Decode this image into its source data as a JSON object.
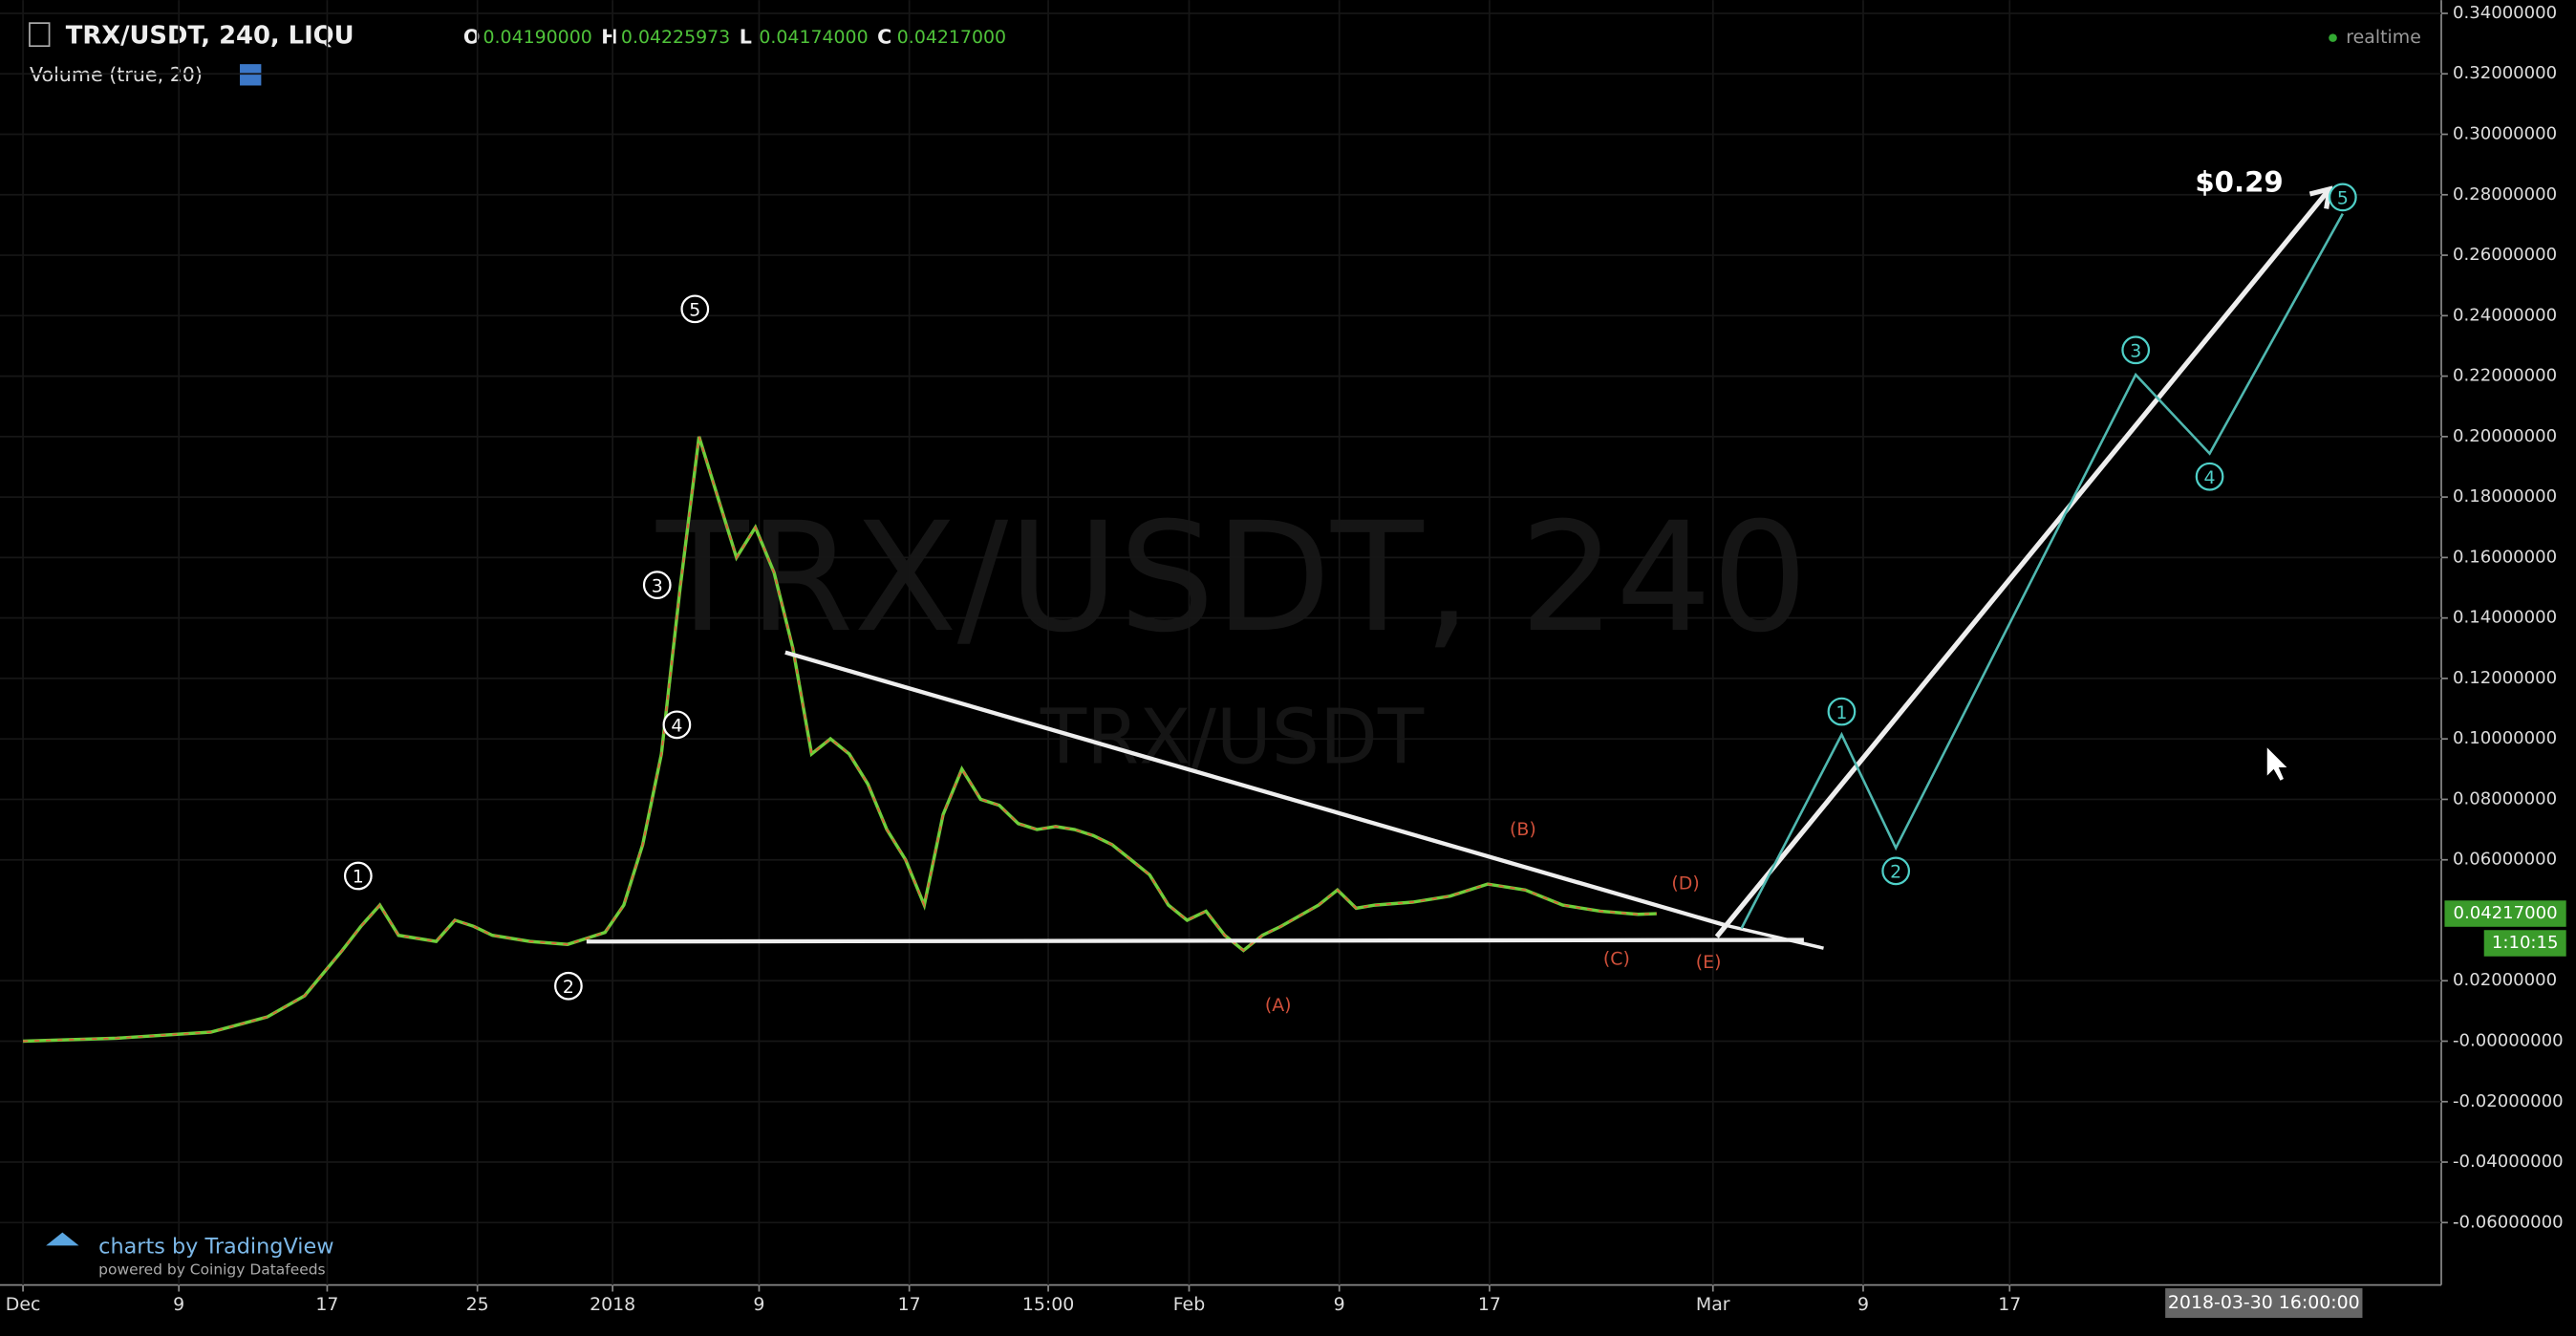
{
  "chart_data": {
    "type": "line",
    "title": "TRX/USDT, 240, LIQU",
    "ohlc": {
      "O_label": "O",
      "O": "0.04190000",
      "H_label": "H",
      "H": "0.04225973",
      "L_label": "L",
      "L": "0.04174000",
      "C_label": "C",
      "C": "0.04217000"
    },
    "volume_label": "Volume (true, 20)",
    "realtime": "realtime",
    "watermark": "TRX/USDT, 240",
    "watermark_sub": "TRX/USDT",
    "branding": "charts by TradingView",
    "branding_sub": "powered by Coinigy Datafeeds",
    "countdown": "1:10:15",
    "cursor_time": "2018-03-30 16:00:00",
    "series": [
      {
        "name": "TRX/USDT",
        "color": "#6fcf3a",
        "x": [
          0,
          5,
          10,
          13,
          15,
          17,
          18,
          19,
          20,
          22,
          23,
          24,
          25,
          27,
          29,
          30,
          31,
          32,
          33,
          34,
          35,
          36,
          37,
          38,
          39,
          40,
          41,
          42,
          43,
          44,
          45,
          46,
          47,
          48,
          49,
          50,
          51,
          52,
          53,
          54,
          55,
          56,
          57,
          58,
          59,
          60,
          61,
          62,
          63,
          64,
          65,
          66,
          67,
          69,
          70,
          71,
          72,
          74,
          76,
          78,
          80,
          82,
          84,
          86,
          87
        ],
        "values": [
          0,
          0.001,
          0.003,
          0.008,
          0.015,
          0.03,
          0.038,
          0.045,
          0.035,
          0.033,
          0.04,
          0.038,
          0.035,
          0.033,
          0.032,
          0.034,
          0.036,
          0.045,
          0.065,
          0.095,
          0.15,
          0.2,
          0.18,
          0.16,
          0.17,
          0.155,
          0.13,
          0.095,
          0.1,
          0.095,
          0.085,
          0.07,
          0.06,
          0.045,
          0.075,
          0.09,
          0.08,
          0.078,
          0.072,
          0.07,
          0.071,
          0.07,
          0.068,
          0.065,
          0.06,
          0.055,
          0.045,
          0.04,
          0.043,
          0.035,
          0.03,
          0.035,
          0.038,
          0.045,
          0.05,
          0.044,
          0.045,
          0.046,
          0.048,
          0.052,
          0.05,
          0.045,
          0.043,
          0.042,
          0.0422
        ]
      }
    ],
    "xlim": [
      0,
      128.7
    ],
    "xticks": [
      {
        "value": 0,
        "label": "Dec"
      },
      {
        "value": 8.3,
        "label": "9"
      },
      {
        "value": 16.2,
        "label": "17"
      },
      {
        "value": 24.2,
        "label": "25"
      },
      {
        "value": 31.4,
        "label": "2018"
      },
      {
        "value": 39.2,
        "label": "9"
      },
      {
        "value": 47.2,
        "label": "17"
      },
      {
        "value": 54.6,
        "label": "15:00"
      },
      {
        "value": 62.1,
        "label": "Feb"
      },
      {
        "value": 70.1,
        "label": "9"
      },
      {
        "value": 78.1,
        "label": "17"
      },
      {
        "value": 90,
        "label": "Mar"
      },
      {
        "value": 98,
        "label": "9"
      },
      {
        "value": 105.8,
        "label": "17"
      }
    ],
    "ylim": [
      -0.0975,
      0.3444
    ],
    "yticks": [
      {
        "value": 0.34,
        "label": "0.34000000"
      },
      {
        "value": 0.32,
        "label": "0.32000000"
      },
      {
        "value": 0.3,
        "label": "0.30000000"
      },
      {
        "value": 0.28,
        "label": "0.28000000"
      },
      {
        "value": 0.26,
        "label": "0.26000000"
      },
      {
        "value": 0.24,
        "label": "0.24000000"
      },
      {
        "value": 0.22,
        "label": "0.22000000"
      },
      {
        "value": 0.2,
        "label": "0.20000000"
      },
      {
        "value": 0.18,
        "label": "0.18000000"
      },
      {
        "value": 0.16,
        "label": "0.16000000"
      },
      {
        "value": 0.14,
        "label": "0.14000000"
      },
      {
        "value": 0.12,
        "label": "0.12000000"
      },
      {
        "value": 0.1,
        "label": "0.10000000"
      },
      {
        "value": 0.08,
        "label": "0.08000000"
      },
      {
        "value": 0.06,
        "label": "0.06000000"
      },
      {
        "value": 0.02,
        "label": "0.02000000"
      },
      {
        "value": 0,
        "label": "-0.00000000"
      },
      {
        "value": -0.02,
        "label": "-0.02000000"
      },
      {
        "value": -0.04,
        "label": "-0.04000000"
      },
      {
        "value": -0.06,
        "label": "-0.06000000"
      }
    ],
    "grid": true,
    "annotations": [
      "1",
      "2",
      "3",
      "4",
      "5",
      "(A)",
      "(B)",
      "(C)",
      "(D)",
      "(E)",
      "1",
      "2",
      "3",
      "4",
      "5",
      "$0.29"
    ]
  }
}
